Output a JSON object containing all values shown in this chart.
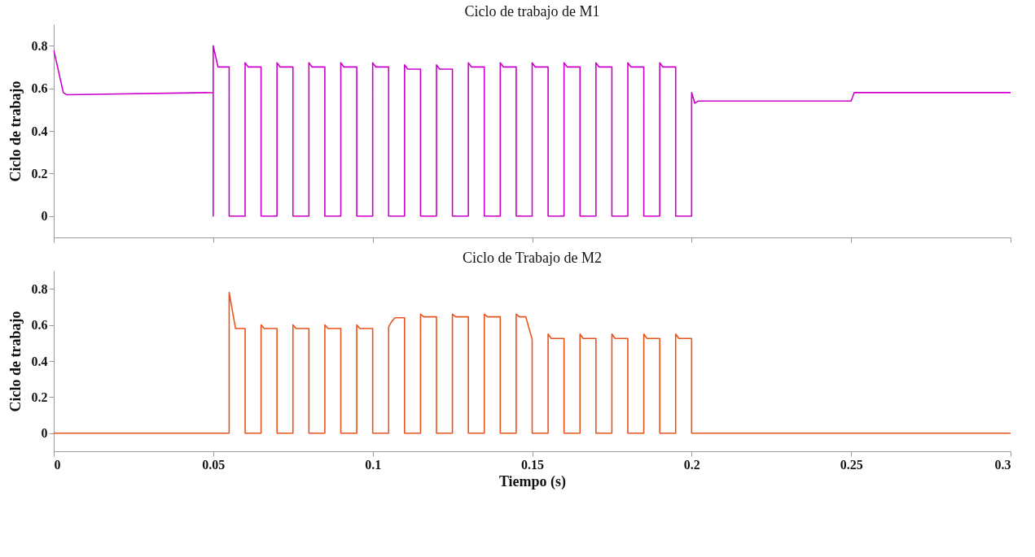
{
  "chart_data": [
    {
      "type": "line",
      "title": "Ciclo de trabajo de M1",
      "ylabel": "Ciclo de trabajo",
      "tick_labels": "y",
      "xlim": [
        0,
        0.3
      ],
      "xticks": [
        0,
        0.05,
        0.1,
        0.15,
        0.2,
        0.25,
        0.3
      ],
      "ylim": [
        -0.1,
        0.9
      ],
      "yticks": [
        0,
        0.2,
        0.4,
        0.6,
        0.8
      ],
      "series": [
        {
          "color": "#cc00cc",
          "x": [
            0,
            0.003,
            0.004,
            0.05,
            0.05,
            0.05,
            0.0515,
            0.055,
            0.055,
            0.06,
            0.06,
            0.061,
            0.065,
            0.065,
            0.07,
            0.07,
            0.071,
            0.075,
            0.075,
            0.08,
            0.08,
            0.081,
            0.085,
            0.085,
            0.09,
            0.09,
            0.091,
            0.095,
            0.095,
            0.1,
            0.1,
            0.101,
            0.105,
            0.105,
            0.11,
            0.11,
            0.111,
            0.115,
            0.115,
            0.12,
            0.12,
            0.121,
            0.125,
            0.125,
            0.13,
            0.13,
            0.131,
            0.135,
            0.135,
            0.14,
            0.14,
            0.141,
            0.145,
            0.145,
            0.15,
            0.15,
            0.151,
            0.155,
            0.155,
            0.16,
            0.16,
            0.161,
            0.165,
            0.165,
            0.17,
            0.17,
            0.171,
            0.175,
            0.175,
            0.18,
            0.18,
            0.181,
            0.185,
            0.185,
            0.19,
            0.19,
            0.191,
            0.195,
            0.195,
            0.2,
            0.2,
            0.201,
            0.202,
            0.25,
            0.251,
            0.3
          ],
          "values": [
            0.78,
            0.58,
            0.57,
            0.58,
            0,
            0.8,
            0.7,
            0.7,
            0,
            0,
            0.72,
            0.7,
            0.7,
            0,
            0,
            0.72,
            0.7,
            0.7,
            0,
            0,
            0.72,
            0.7,
            0.7,
            0,
            0,
            0.72,
            0.7,
            0.7,
            0,
            0,
            0.72,
            0.7,
            0.7,
            0,
            0,
            0.71,
            0.69,
            0.69,
            0,
            0,
            0.71,
            0.69,
            0.69,
            0,
            0,
            0.72,
            0.7,
            0.7,
            0,
            0,
            0.72,
            0.7,
            0.7,
            0,
            0,
            0.72,
            0.7,
            0.7,
            0,
            0,
            0.72,
            0.7,
            0.7,
            0,
            0,
            0.72,
            0.7,
            0.7,
            0,
            0,
            0.72,
            0.7,
            0.7,
            0,
            0,
            0.72,
            0.7,
            0.7,
            0,
            0,
            0.58,
            0.53,
            0.54,
            0.54,
            0.58,
            0.58
          ]
        }
      ]
    },
    {
      "type": "line",
      "title": "Ciclo de Trabajo de M2",
      "xlabel": "Tiempo (s)",
      "ylabel": "Ciclo de trabajo",
      "xlim": [
        0,
        0.3
      ],
      "xticks": [
        0,
        0.05,
        0.1,
        0.15,
        0.2,
        0.25,
        0.3
      ],
      "ylim": [
        -0.1,
        0.9
      ],
      "yticks": [
        0,
        0.2,
        0.4,
        0.6,
        0.8
      ],
      "series": [
        {
          "color": "#e8541c",
          "x": [
            0,
            0.055,
            0.055,
            0.057,
            0.06,
            0.06,
            0.065,
            0.065,
            0.066,
            0.07,
            0.07,
            0.075,
            0.075,
            0.076,
            0.08,
            0.08,
            0.085,
            0.085,
            0.086,
            0.09,
            0.09,
            0.095,
            0.095,
            0.096,
            0.1,
            0.1,
            0.105,
            0.105,
            0.106,
            0.107,
            0.11,
            0.11,
            0.115,
            0.115,
            0.116,
            0.12,
            0.12,
            0.125,
            0.125,
            0.126,
            0.13,
            0.13,
            0.135,
            0.135,
            0.136,
            0.14,
            0.14,
            0.145,
            0.145,
            0.146,
            0.148,
            0.15,
            0.15,
            0.155,
            0.155,
            0.156,
            0.16,
            0.16,
            0.165,
            0.165,
            0.166,
            0.17,
            0.17,
            0.175,
            0.175,
            0.176,
            0.18,
            0.18,
            0.185,
            0.185,
            0.186,
            0.19,
            0.19,
            0.195,
            0.195,
            0.196,
            0.2,
            0.2,
            0.3
          ],
          "values": [
            0,
            0,
            0.78,
            0.58,
            0.58,
            0,
            0,
            0.6,
            0.58,
            0.58,
            0,
            0,
            0.6,
            0.58,
            0.58,
            0,
            0,
            0.6,
            0.58,
            0.58,
            0,
            0,
            0.6,
            0.58,
            0.58,
            0,
            0,
            0.59,
            0.62,
            0.64,
            0.64,
            0,
            0,
            0.66,
            0.645,
            0.645,
            0,
            0,
            0.66,
            0.645,
            0.645,
            0,
            0,
            0.66,
            0.645,
            0.645,
            0,
            0,
            0.66,
            0.645,
            0.645,
            0.52,
            0,
            0,
            0.55,
            0.525,
            0.525,
            0,
            0,
            0.55,
            0.525,
            0.525,
            0,
            0,
            0.55,
            0.525,
            0.525,
            0,
            0,
            0.55,
            0.525,
            0.525,
            0,
            0,
            0.55,
            0.525,
            0.525,
            0,
            0
          ]
        }
      ]
    }
  ]
}
